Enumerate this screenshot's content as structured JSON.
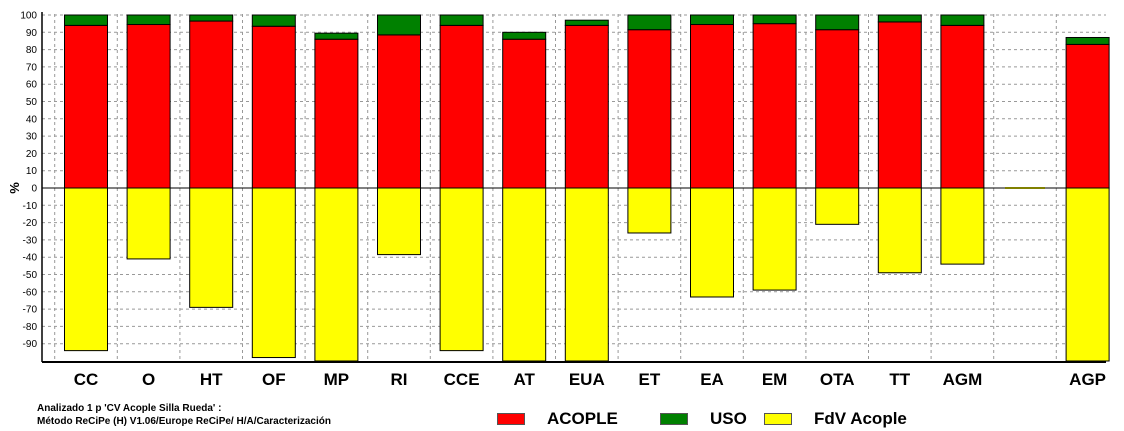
{
  "chart_data": {
    "type": "bar",
    "stacked": true,
    "ylabel": "%",
    "ylim": [
      -100,
      100
    ],
    "yticks": [
      100,
      90,
      80,
      70,
      60,
      50,
      40,
      30,
      20,
      10,
      0,
      -10,
      -20,
      -30,
      -40,
      -50,
      -60,
      -70,
      -80,
      -90
    ],
    "categories": [
      "CC",
      "O",
      "HT",
      "OF",
      "MP",
      "RI",
      "CCE",
      "AT",
      "EUA",
      "ET",
      "EA",
      "EM",
      "OTA",
      "TT",
      "AGM",
      "",
      "AGP"
    ],
    "series": [
      {
        "name": "ACOPLE",
        "color": "#ff0000",
        "values": [
          94,
          94.5,
          96.5,
          93.5,
          86,
          88.5,
          94,
          86,
          94,
          91.5,
          94.5,
          95,
          91.5,
          96,
          94,
          0,
          83
        ]
      },
      {
        "name": "USO",
        "color": "#008000",
        "values": [
          6,
          5.5,
          3.5,
          6.5,
          3.5,
          11.5,
          6,
          4,
          3,
          8.5,
          5.5,
          5,
          8.5,
          4,
          6,
          0,
          4
        ]
      },
      {
        "name": "FdV Acople",
        "color": "#ffff00",
        "values": [
          -94,
          -41,
          -69,
          -98,
          -100,
          -38.5,
          -94,
          -100,
          -100,
          -26,
          -63,
          -59,
          -21,
          -49,
          -44,
          0,
          -100
        ]
      }
    ],
    "grid": true,
    "legend": "bottom"
  },
  "footer": {
    "line1": "Analizado 1 p 'CV Acople Silla Rueda' :",
    "line2": "Método ReCiPe (H) V1.06/Europe ReCiPe/ H/A/Caracterización"
  },
  "legend": {
    "acople": "ACOPLE",
    "uso": "USO",
    "fdv": "FdV Acople"
  }
}
